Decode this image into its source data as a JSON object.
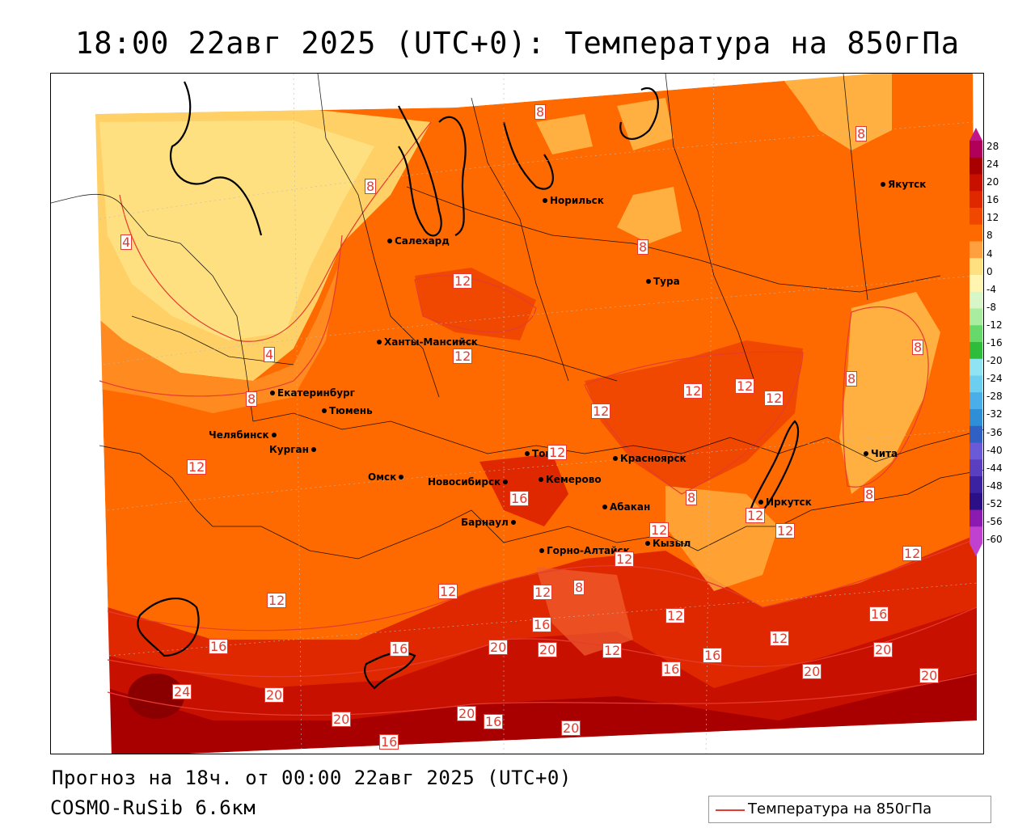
{
  "title": "18:00 22авг 2025 (UTC+0): Температура на 850гПа",
  "footer": {
    "forecast": "Прогноз на 18ч. от 00:00 22авг 2025 (UTC+0)",
    "model": "COSMO-RuSib 6.6км"
  },
  "legend": {
    "label": "Температура на 850гПа",
    "line_color": "#e53c2f"
  },
  "colorbar": {
    "labels": [
      "28",
      "24",
      "20",
      "16",
      "12",
      "8",
      "4",
      "0",
      "-4",
      "-8",
      "-12",
      "-16",
      "-20",
      "-24",
      "-28",
      "-32",
      "-36",
      "-40",
      "-44",
      "-48",
      "-52",
      "-56",
      "-60"
    ],
    "colors": [
      "#b0005a",
      "#a80000",
      "#c81000",
      "#e02800",
      "#f04800",
      "#ff6a00",
      "#ffa040",
      "#ffe080",
      "#fff5b0",
      "#d8f7c8",
      "#a8eda0",
      "#66d96a",
      "#2ebd3a",
      "#8fe3f2",
      "#6ccff0",
      "#4aaee8",
      "#2f8fd6",
      "#3060c4",
      "#6a5ad8",
      "#5a40c0",
      "#3a22a0",
      "#2a0f86",
      "#8a1ab0",
      "#c040d0"
    ]
  },
  "cities": [
    {
      "name": "Норильск"
    },
    {
      "name": "Якутск"
    },
    {
      "name": "Салехард"
    },
    {
      "name": "Тура"
    },
    {
      "name": "Ханты-Мансийск"
    },
    {
      "name": "Екатеринбург"
    },
    {
      "name": "Тюмень"
    },
    {
      "name": "Челябинск"
    },
    {
      "name": "Курган"
    },
    {
      "name": "Омск"
    },
    {
      "name": "Новосибирск"
    },
    {
      "name": "Томск"
    },
    {
      "name": "Кемерово"
    },
    {
      "name": "Красноярск"
    },
    {
      "name": "Абакан"
    },
    {
      "name": "Барнаул"
    },
    {
      "name": "Горно-Алтайск"
    },
    {
      "name": "Кызыл"
    },
    {
      "name": "Иркутск"
    },
    {
      "name": "Чита"
    }
  ],
  "isotherm_labels": [
    "8",
    "8",
    "8",
    "8",
    "12",
    "12",
    "4",
    "4",
    "12",
    "8",
    "12",
    "12",
    "12",
    "12",
    "8",
    "12",
    "8",
    "8",
    "12",
    "12",
    "12",
    "16",
    "8",
    "12",
    "12",
    "12",
    "12",
    "8",
    "16",
    "12",
    "12",
    "12",
    "16",
    "16",
    "20",
    "20",
    "12",
    "16",
    "16",
    "20",
    "24",
    "20",
    "20",
    "20",
    "16",
    "16",
    "20",
    "16",
    "20",
    "20"
  ]
}
